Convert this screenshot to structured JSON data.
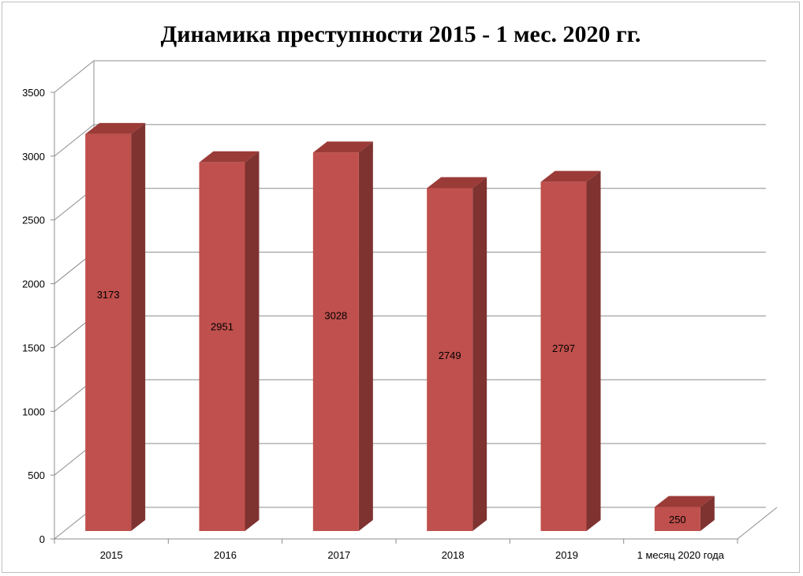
{
  "chart_data": {
    "type": "bar",
    "title": "Динамика преступности 2015 - 1 мес. 2020 гг.",
    "categories": [
      "2015",
      "2016",
      "2017",
      "2018",
      "2019",
      "1 месяц 2020 года"
    ],
    "values": [
      3173,
      2951,
      3028,
      2749,
      2797,
      250
    ],
    "data_labels": [
      "3173",
      "2951",
      "3028",
      "2749",
      "2797",
      "250"
    ],
    "ylim": [
      0,
      3500
    ],
    "yticks": [
      0,
      500,
      1000,
      1500,
      2000,
      2500,
      3000,
      3500
    ],
    "grid": true,
    "legend": "none",
    "style": "3d-column",
    "colors": {
      "bar_front": "#c0504d",
      "bar_side": "#7f3331",
      "bar_top": "#9b3b38",
      "grid": "#8c8c8c"
    }
  }
}
